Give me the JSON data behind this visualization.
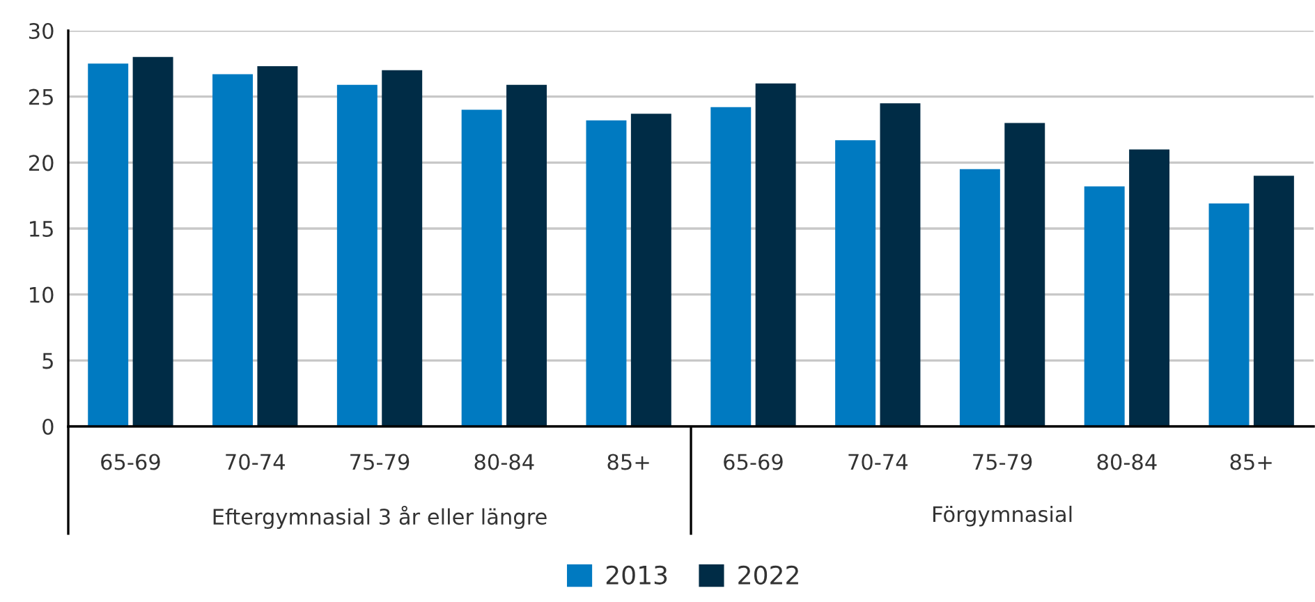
{
  "chart_data": {
    "type": "bar",
    "categories": [
      "65-69",
      "70-74",
      "75-79",
      "80-84",
      "85+",
      "65-69",
      "70-74",
      "75-79",
      "80-84",
      "85+"
    ],
    "series": [
      {
        "name": "2013",
        "color": "#007ac1",
        "values": [
          27.5,
          26.7,
          25.9,
          24.0,
          23.2,
          24.2,
          21.7,
          19.5,
          18.2,
          16.9
        ]
      },
      {
        "name": "2022",
        "color": "#002c46",
        "values": [
          28.0,
          27.3,
          27.0,
          25.9,
          23.7,
          26.0,
          24.5,
          23.0,
          21.0,
          19.0
        ]
      }
    ],
    "ylim": [
      0,
      30
    ],
    "yticks": [
      0,
      5,
      10,
      15,
      20,
      25,
      30
    ],
    "grid": "y",
    "legend": "bottom",
    "annotations": [
      "Eftergymnasial 3 år eller längre",
      "Förgymnasial"
    ]
  }
}
